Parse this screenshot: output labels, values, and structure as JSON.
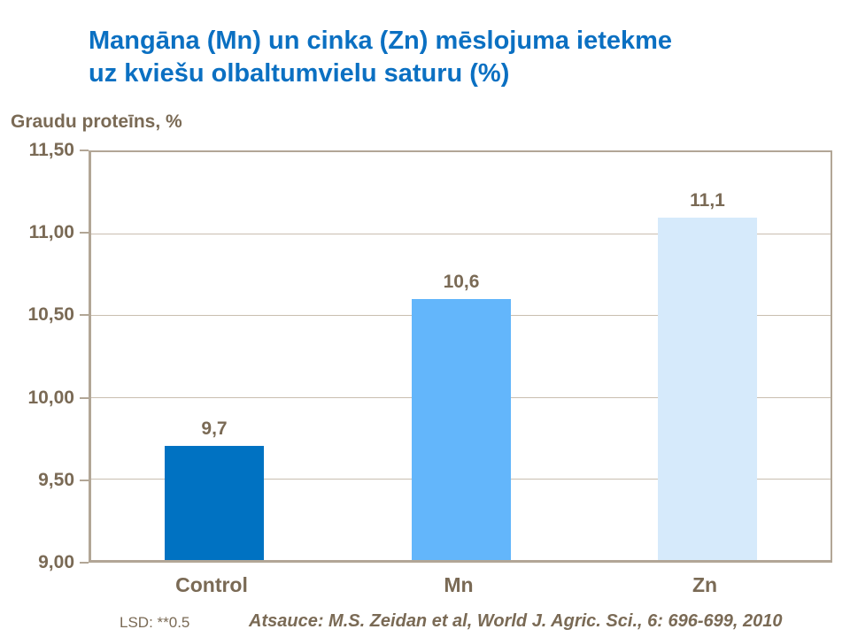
{
  "slide_title": {
    "line1": "Mangāna (Mn) un cinka (Zn) mēslojuma ietekme",
    "line2": "uz kviešu olbaltumvielu saturu (%)"
  },
  "footer": {
    "lsd": "LSD: **0.5",
    "reference": "Atsauce: M.S. Zeidan et al, World J. Agric. Sci., 6: 696-699, 2010"
  },
  "colors": {
    "title_text": "#0B70C2",
    "body_text": "#7A6A55",
    "axis_line": "#B2A696",
    "gridline": "#C9BEB0",
    "bar_colors": [
      "#0072C2",
      "#63B6FB",
      "#D6EAFB"
    ]
  },
  "chart_data": {
    "type": "bar",
    "title": "Mangāna (Mn) un cinka (Zn) mēslojuma ietekme uz kviešu olbaltumvielu saturu (%)",
    "ylabel": "Graudu proteīns, %",
    "categories": [
      "Control",
      "Mn",
      "Zn"
    ],
    "values": [
      9.7,
      10.6,
      11.1
    ],
    "value_labels": [
      "9,7",
      "10,6",
      "11,1"
    ],
    "ylim": [
      9.0,
      11.5
    ],
    "ytick_step": 0.5,
    "ytick_labels_top_to_bottom": [
      "11,50",
      "11,00",
      "10,50",
      "10,00",
      "9,50",
      "9,00"
    ],
    "grid": true,
    "legend": false,
    "annotations": [
      "LSD: **0.5",
      "Atsauce: M.S. Zeidan et al, World J. Agric. Sci., 6: 696-699, 2010"
    ]
  }
}
